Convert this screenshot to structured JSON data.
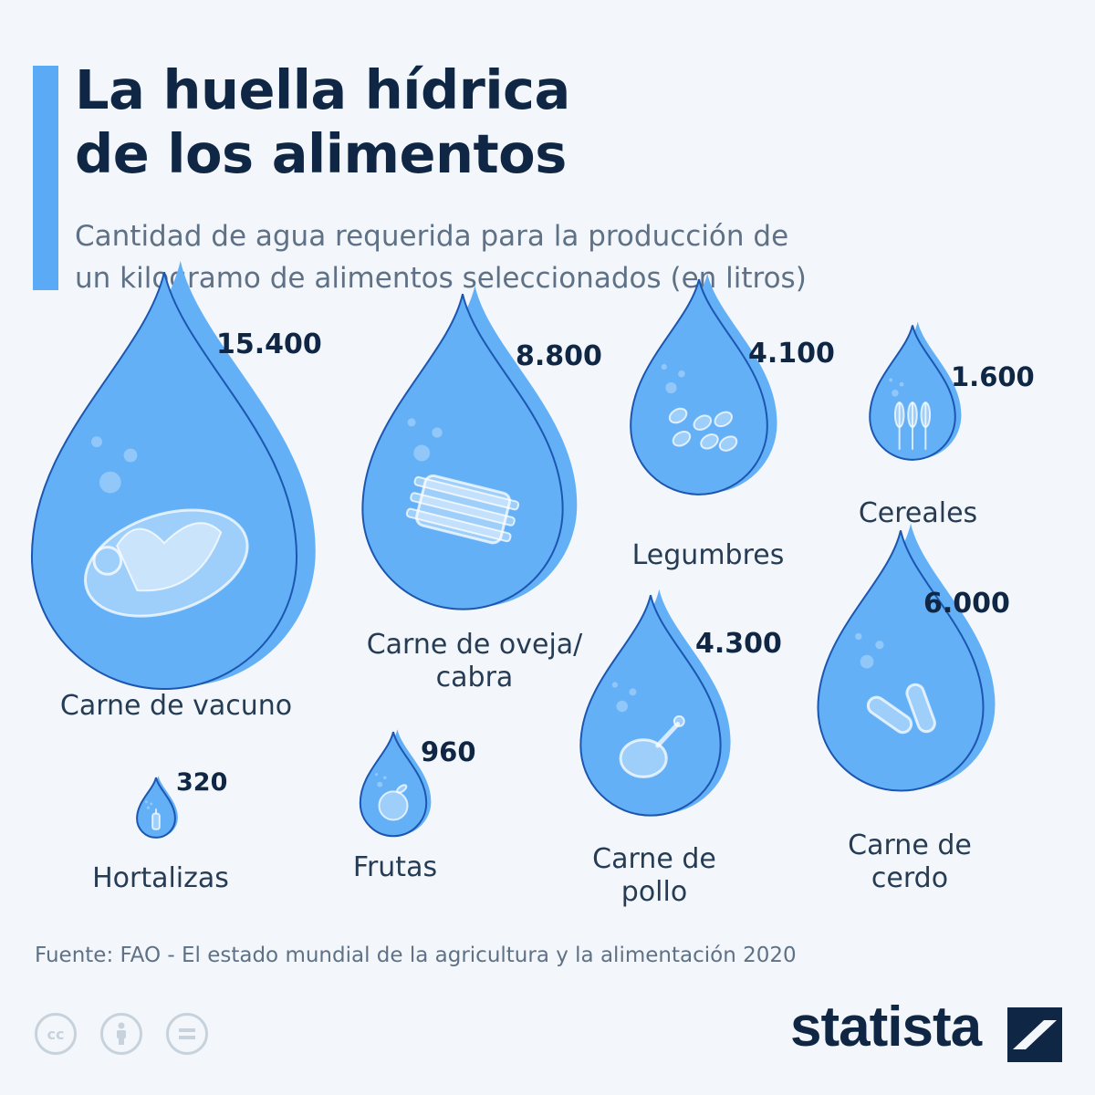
{
  "header": {
    "title_lines": [
      "La huella hídrica",
      "de los alimentos"
    ],
    "subtitle_lines": [
      "Cantidad de agua requerida para la producción de",
      "un kilogramo de alimentos seleccionados (en litros)"
    ]
  },
  "chart_data": {
    "type": "proportional-area",
    "title": "La huella hídrica de los alimentos",
    "subtitle": "Cantidad de agua requerida para la producción de un kilogramo de alimentos seleccionados (en litros)",
    "categories": [
      {
        "name": "Carne de vacuno",
        "value": 15400,
        "value_label": "15.400",
        "label_lines": [
          "Carne de vacuno"
        ],
        "icon": "steak-icon"
      },
      {
        "name": "Carne de oveja/cabra",
        "value": 8800,
        "value_label": "8.800",
        "label_lines": [
          "Carne de oveja/",
          "cabra"
        ],
        "icon": "ribs-icon"
      },
      {
        "name": "Legumbres",
        "value": 4100,
        "value_label": "4.100",
        "label_lines": [
          "Legumbres"
        ],
        "icon": "beans-icon"
      },
      {
        "name": "Cereales",
        "value": 1600,
        "value_label": "1.600",
        "label_lines": [
          "Cereales"
        ],
        "icon": "wheat-icon"
      },
      {
        "name": "Carne de pollo",
        "value": 4300,
        "value_label": "4.300",
        "label_lines": [
          "Carne de",
          "pollo"
        ],
        "icon": "chicken-leg-icon"
      },
      {
        "name": "Carne de cerdo",
        "value": 6000,
        "value_label": "6.000",
        "label_lines": [
          "Carne de",
          "cerdo"
        ],
        "icon": "sausage-icon"
      },
      {
        "name": "Hortalizas",
        "value": 320,
        "value_label": "320",
        "label_lines": [
          "Hortalizas"
        ],
        "icon": "carrot-icon"
      },
      {
        "name": "Frutas",
        "value": 960,
        "value_label": "960",
        "label_lines": [
          "Frutas"
        ],
        "icon": "fruit-icon"
      }
    ]
  },
  "colors": {
    "drop_fill": "#63b0f7",
    "drop_outline": "#1c56b0",
    "accent": "#5aaaf5",
    "title": "#0f2744"
  },
  "footer": {
    "source": "Fuente: FAO - El estado mundial de la agricultura y la alimentación 2020",
    "license_icons": [
      "cc-icon",
      "attribution-icon",
      "no-derivatives-icon"
    ],
    "brand": "statista"
  }
}
